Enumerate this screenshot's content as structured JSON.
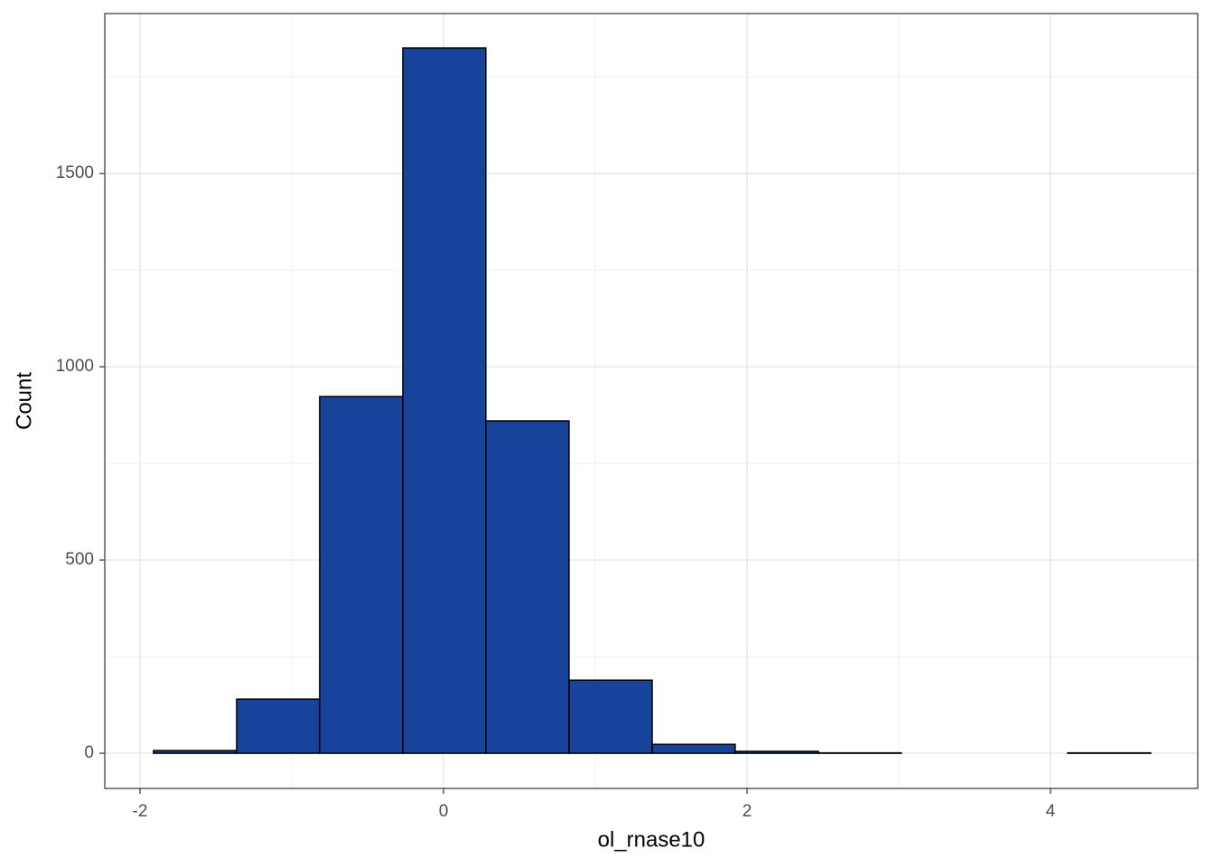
{
  "chart_data": {
    "type": "histogram",
    "x_label": "ol_rnase10",
    "y_label": "Count",
    "bins": [
      -1.911,
      -1.363,
      -0.816,
      -0.268,
      0.279,
      0.827,
      1.375,
      1.922,
      2.47,
      3.017,
      3.565,
      4.113,
      4.66
    ],
    "counts": [
      7,
      140,
      923,
      1825,
      860,
      189,
      23,
      5,
      1,
      0,
      0,
      1
    ],
    "color": "#17449a",
    "edge_color": "#000000",
    "xlim": [
      -2.232,
      4.97
    ],
    "xticks": [
      -2,
      0,
      2,
      4
    ],
    "x_minor_ticks": [
      -1,
      1,
      3
    ],
    "ylim": [
      -91,
      1914
    ],
    "yticks": [
      0,
      500,
      1000,
      1500
    ],
    "y_minor_ticks": [
      250,
      750,
      1250,
      1750
    ],
    "grid": true
  }
}
